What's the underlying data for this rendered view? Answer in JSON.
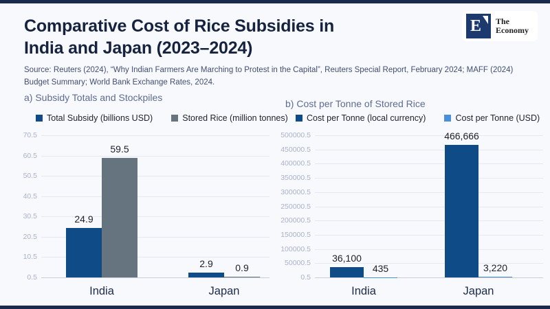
{
  "header": {
    "title_line1": "Comparative Cost of Rice Subsidies in",
    "title_line2": "India and Japan (2023–2024)",
    "source": "Source: Reuters (2024), “Why Indian Farmers Are Marching to Protest in the Capital”, Reuters Special Report, February 2024; MAFF (2024) Budget Summary; World Bank Exchange Rates, 2024.",
    "logo": {
      "mark": "E",
      "line1": "The",
      "line2": "Economy"
    }
  },
  "colors": {
    "border_navy": "#1c2b4d",
    "bar_navy": "#0f4c87",
    "bar_slate": "#66747f",
    "bar_light_blue": "#4a90d8",
    "background": "#f8f9fd"
  },
  "chart_data": [
    {
      "type": "bar",
      "title": "a) Subsidy Totals and Stockpiles",
      "categories": [
        "India",
        "Japan"
      ],
      "series": [
        {
          "name": "Total Subsidy (billions USD)",
          "color": "#0f4c87",
          "values": [
            24.9,
            2.9
          ],
          "labels": [
            "24.9",
            "2.9"
          ]
        },
        {
          "name": "Stored Rice (million tonnes)",
          "color": "#66747f",
          "values": [
            59.5,
            0.9
          ],
          "labels": [
            "59.5",
            "0.9"
          ]
        }
      ],
      "ylim": [
        0.5,
        70.5
      ],
      "yticks": [
        "0.5",
        "10.5",
        "20.5",
        "30.5",
        "40.5",
        "50.5",
        "60.5",
        "70.5"
      ],
      "grid": true,
      "legend_position": "top"
    },
    {
      "type": "bar",
      "title": "b) Cost per Tonne of Stored Rice",
      "categories": [
        "India",
        "Japan"
      ],
      "series": [
        {
          "name": "Cost per Tonne (local currency)",
          "color": "#0f4c87",
          "values": [
            36100,
            466666
          ],
          "labels": [
            "36,100",
            "466,666"
          ]
        },
        {
          "name": "Cost per Tonne (USD)",
          "color": "#4a90d8",
          "values": [
            435,
            3220
          ],
          "labels": [
            "435",
            "3,220"
          ]
        }
      ],
      "ylim": [
        0.5,
        500000.5
      ],
      "yticks": [
        "0.5",
        "50000.5",
        "100000.5",
        "150000.5",
        "200000.5",
        "250000.5",
        "300000.5",
        "350000.5",
        "400000.5",
        "450000.5",
        "500000.5"
      ],
      "grid": true,
      "legend_position": "top"
    }
  ]
}
